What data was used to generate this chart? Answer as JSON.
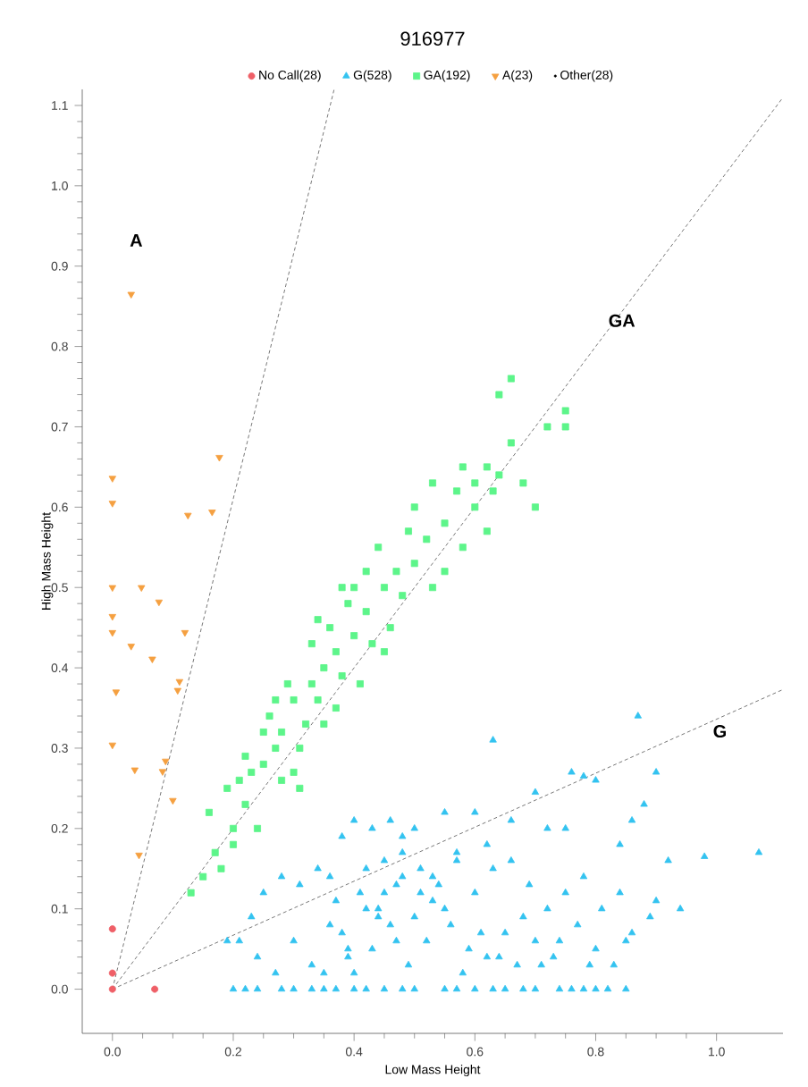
{
  "chart_data": {
    "type": "scatter",
    "title": "916977",
    "xlabel": "Low Mass Height",
    "ylabel": "High Mass Height",
    "xlim": [
      -0.05,
      1.11
    ],
    "ylim": [
      -0.055,
      1.12
    ],
    "xticks": [
      {
        "value": 0,
        "label": "0.0"
      },
      0.2,
      0.4,
      0.6,
      0.8,
      {
        "value": 1,
        "label": "1.0"
      }
    ],
    "yticks": [
      {
        "value": 0,
        "label": "0.0"
      },
      0.1,
      0.2,
      0.3,
      0.4,
      0.5,
      0.6,
      0.7,
      0.8,
      0.9,
      {
        "value": 1,
        "label": "1.0"
      },
      1.1
    ],
    "grid": false,
    "legend": "top",
    "annotations": [
      "A",
      "GA",
      "G"
    ],
    "series": [
      {
        "name": "No Call(28)",
        "color": "#ef5f67",
        "marker": "circle",
        "x": [
          0,
          0,
          0,
          0.07
        ],
        "values": [
          0.075,
          0.02,
          0,
          0
        ]
      },
      {
        "name": "G(528)",
        "color": "#33c3f0",
        "marker": "triangle",
        "x": [
          0.2,
          0.22,
          0.24,
          0.28,
          0.3,
          0.33,
          0.35,
          0.37,
          0.4,
          0.42,
          0.45,
          0.48,
          0.5,
          0.55,
          0.57,
          0.6,
          0.63,
          0.65,
          0.68,
          0.7,
          0.74,
          0.76,
          0.78,
          0.8,
          0.82,
          0.85,
          0.87,
          0.63,
          1.07,
          0.98,
          0.92,
          0.94,
          0.9,
          0.8,
          0.78,
          0.76,
          0.7,
          0.72,
          0.75,
          0.86,
          0.88,
          0.84,
          0.66,
          0.6,
          0.55,
          0.5,
          0.46,
          0.48,
          0.43,
          0.4,
          0.38,
          0.36,
          0.34,
          0.31,
          0.28,
          0.25,
          0.23,
          0.21,
          0.19,
          0.24,
          0.27,
          0.3,
          0.33,
          0.36,
          0.39,
          0.42,
          0.45,
          0.48,
          0.51,
          0.54,
          0.57,
          0.6,
          0.63,
          0.66,
          0.69,
          0.72,
          0.75,
          0.78,
          0.81,
          0.84,
          0.35,
          0.38,
          0.41,
          0.44,
          0.47,
          0.5,
          0.53,
          0.56,
          0.59,
          0.62,
          0.65,
          0.68,
          0.71,
          0.74,
          0.77,
          0.8,
          0.83,
          0.86,
          0.9,
          0.4,
          0.43,
          0.46,
          0.49,
          0.52,
          0.55,
          0.58,
          0.61,
          0.64,
          0.67,
          0.7,
          0.45,
          0.48,
          0.51,
          0.42,
          0.39,
          0.37,
          0.44,
          0.47,
          0.53,
          0.57,
          0.62,
          0.73,
          0.79,
          0.85,
          0.89
        ],
        "values": [
          0,
          0,
          0,
          0,
          0,
          0,
          0,
          0,
          0,
          0,
          0,
          0,
          0,
          0,
          0,
          0,
          0,
          0,
          0,
          0,
          0,
          0,
          0,
          0,
          0,
          0,
          0.34,
          0.31,
          0.17,
          0.165,
          0.16,
          0.1,
          0.27,
          0.26,
          0.265,
          0.27,
          0.245,
          0.2,
          0.2,
          0.21,
          0.23,
          0.18,
          0.21,
          0.22,
          0.22,
          0.2,
          0.21,
          0.19,
          0.2,
          0.21,
          0.19,
          0.14,
          0.15,
          0.13,
          0.14,
          0.12,
          0.09,
          0.06,
          0.06,
          0.04,
          0.02,
          0.06,
          0.03,
          0.08,
          0.05,
          0.1,
          0.12,
          0.14,
          0.15,
          0.13,
          0.17,
          0.12,
          0.15,
          0.16,
          0.13,
          0.1,
          0.12,
          0.14,
          0.1,
          0.12,
          0.02,
          0.07,
          0.12,
          0.1,
          0.06,
          0.09,
          0.11,
          0.08,
          0.05,
          0.04,
          0.07,
          0.09,
          0.03,
          0.06,
          0.08,
          0.05,
          0.03,
          0.07,
          0.11,
          0.02,
          0.05,
          0.08,
          0.03,
          0.06,
          0.1,
          0.02,
          0.07,
          0.04,
          0.03,
          0.06,
          0.16,
          0.17,
          0.12,
          0.15,
          0.04,
          0.11,
          0.09,
          0.13,
          0.14,
          0.16,
          0.18,
          0.04,
          0.03,
          0.06,
          0.09
        ]
      },
      {
        "name": "GA(192)",
        "color": "#5df58a",
        "marker": "square",
        "x": [
          0.13,
          0.15,
          0.17,
          0.2,
          0.2,
          0.19,
          0.22,
          0.23,
          0.25,
          0.27,
          0.28,
          0.3,
          0.31,
          0.26,
          0.3,
          0.32,
          0.33,
          0.35,
          0.34,
          0.37,
          0.38,
          0.36,
          0.4,
          0.42,
          0.39,
          0.43,
          0.45,
          0.47,
          0.44,
          0.48,
          0.5,
          0.52,
          0.5,
          0.55,
          0.53,
          0.57,
          0.6,
          0.58,
          0.62,
          0.64,
          0.66,
          0.68,
          0.72,
          0.75,
          0.75,
          0.66,
          0.64,
          0.6,
          0.45,
          0.25,
          0.22,
          0.28,
          0.31,
          0.35,
          0.37,
          0.41,
          0.33,
          0.29,
          0.4,
          0.46,
          0.55,
          0.62,
          0.7,
          0.58,
          0.16,
          0.18,
          0.24,
          0.21,
          0.27,
          0.34,
          0.38,
          0.42,
          0.49,
          0.53,
          0.63
        ],
        "values": [
          0.12,
          0.14,
          0.17,
          0.2,
          0.18,
          0.25,
          0.23,
          0.27,
          0.28,
          0.3,
          0.32,
          0.27,
          0.25,
          0.34,
          0.36,
          0.33,
          0.38,
          0.4,
          0.36,
          0.42,
          0.39,
          0.45,
          0.44,
          0.47,
          0.48,
          0.43,
          0.5,
          0.52,
          0.55,
          0.49,
          0.53,
          0.56,
          0.6,
          0.58,
          0.5,
          0.62,
          0.63,
          0.55,
          0.65,
          0.64,
          0.68,
          0.63,
          0.7,
          0.72,
          0.7,
          0.76,
          0.74,
          0.6,
          0.42,
          0.32,
          0.29,
          0.26,
          0.3,
          0.33,
          0.35,
          0.38,
          0.43,
          0.38,
          0.5,
          0.45,
          0.52,
          0.57,
          0.6,
          0.65,
          0.22,
          0.15,
          0.2,
          0.26,
          0.36,
          0.46,
          0.5,
          0.52,
          0.57,
          0.63,
          0.62
        ]
      },
      {
        "name": "A(23)",
        "color": "#f5a040",
        "marker": "triangle-down",
        "x": [
          0.031,
          0,
          0,
          0.177,
          0.125,
          0.165,
          0,
          0.048,
          0.077,
          0,
          0,
          0.12,
          0.031,
          0.066,
          0.006,
          0.111,
          0.108,
          0,
          0.037,
          0.088,
          0.083,
          0.1,
          0.044
        ],
        "values": [
          0.865,
          0.636,
          0.605,
          0.662,
          0.59,
          0.594,
          0.5,
          0.5,
          0.482,
          0.464,
          0.444,
          0.444,
          0.427,
          0.411,
          0.37,
          0.383,
          0.372,
          0.304,
          0.273,
          0.284,
          0.271,
          0.235,
          0.167
        ]
      },
      {
        "name": "Other(28)",
        "color": "#000000",
        "marker": "point"
      },
      {
        "type": "line",
        "color": "#555555",
        "marker": "none",
        "line_style": "dashed",
        "x": [
          0,
          0.367
        ],
        "values": [
          0,
          1.12
        ]
      },
      {
        "type": "line",
        "color": "#555555",
        "marker": "none",
        "line_style": "dashed",
        "x": [
          0,
          1.11
        ],
        "values": [
          0,
          1.11
        ]
      },
      {
        "type": "line",
        "color": "#555555",
        "marker": "none",
        "line_style": "dashed",
        "x": [
          0,
          1.11
        ],
        "values": [
          0,
          0.373
        ]
      }
    ]
  }
}
